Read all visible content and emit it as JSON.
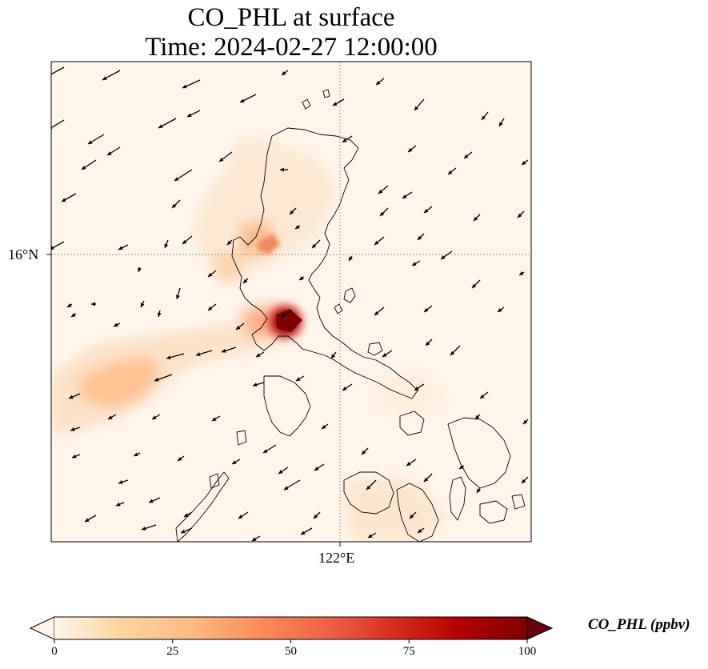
{
  "title": {
    "line1": "CO_PHL at surface",
    "line2": "Time: 2024-02-27 12:00:00"
  },
  "map": {
    "latitude_gridline_label": "16°N",
    "longitude_gridline_label": "122°E",
    "plume_hotspot_description": "dark red source near Manila, orange plume drifting west-southwest over the South China Sea",
    "colors": {
      "background": "#fff5eb",
      "coastline": "#000000",
      "wind_vector": "#000000",
      "gridline": "#808080"
    }
  },
  "colorbar": {
    "label": "CO_PHL (ppbv)",
    "ticks": [
      "0",
      "25",
      "50",
      "75",
      "100"
    ],
    "tick_values": [
      0,
      25,
      50,
      75,
      100
    ],
    "range": [
      0,
      100
    ],
    "extend": "both",
    "colormap": "Oranges-to-darkred",
    "color_stops": [
      "#fff5eb",
      "#fdd49e",
      "#fdbb84",
      "#fc8d59",
      "#ef6548",
      "#d7301f",
      "#b30000",
      "#7f0000"
    ]
  }
}
